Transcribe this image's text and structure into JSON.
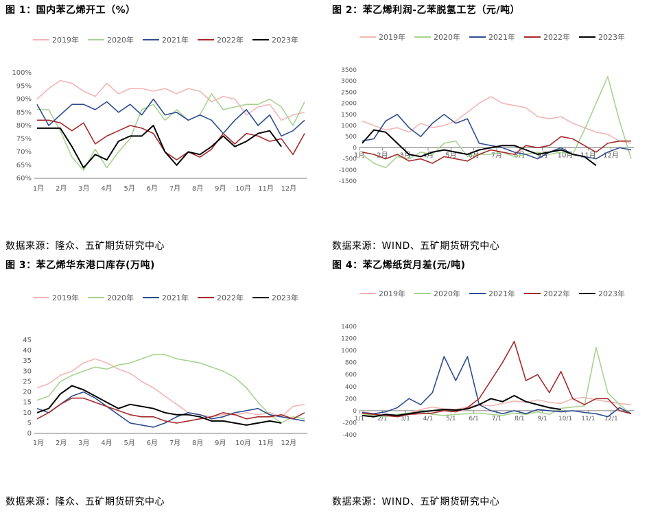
{
  "series_colors": {
    "2019": "#F2B5B5",
    "2020": "#A6D48E",
    "2021": "#2E4D8F",
    "2022": "#A52A2A",
    "2023": "#000000"
  },
  "charts": [
    {
      "title": "图 1：国内苯乙烯开工（%）",
      "source": "数据来源：隆众、五矿期货研究中心",
      "chart_data": {
        "type": "line",
        "legend": [
          "2019年",
          "2020年",
          "2021年",
          "2022年",
          "2023年"
        ],
        "x_ticks": [
          "1月",
          "2月",
          "3月",
          "4月",
          "5月",
          "6月",
          "7月",
          "8月",
          "9月",
          "10月",
          "11月",
          "12月"
        ],
        "y_ticks": [
          "60%",
          "65%",
          "70%",
          "75%",
          "80%",
          "85%",
          "90%",
          "95%",
          "100%"
        ],
        "ylim": [
          60,
          100
        ],
        "series": [
          {
            "name": "2019",
            "values": [
              90,
              94,
              97,
              96,
              93,
              91,
              96,
              92,
              94,
              94,
              93,
              94,
              92,
              94,
              93,
              89,
              91,
              90,
              84,
              87,
              88,
              82,
              84,
              85
            ]
          },
          {
            "name": "2020",
            "values": [
              86,
              86,
              78,
              68,
              63,
              71,
              64,
              70,
              75,
              86,
              88,
              82,
              86,
              82,
              84,
              92,
              86,
              87,
              88,
              88,
              90,
              87,
              80,
              89
            ]
          },
          {
            "name": "2021",
            "values": [
              88,
              80,
              84,
              88,
              88,
              86,
              89,
              85,
              88,
              84,
              90,
              84,
              85,
              82,
              84,
              82,
              77,
              82,
              86,
              80,
              84,
              76,
              78,
              82
            ]
          },
          {
            "name": "2022",
            "values": [
              82,
              82,
              81,
              78,
              81,
              73,
              76,
              78,
              80,
              79,
              77,
              70,
              67,
              70,
              68,
              71,
              77,
              73,
              77,
              76,
              74,
              75,
              69,
              77
            ]
          },
          {
            "name": "2023",
            "values": [
              79,
              79,
              79,
              72,
              64,
              69,
              67,
              74,
              76,
              76,
              80,
              70,
              65,
              70,
              69,
              72,
              76,
              72,
              74,
              77,
              78,
              72
            ]
          }
        ]
      }
    },
    {
      "title": "图 2：苯乙烯利润-乙苯脱氢工艺（元/吨）",
      "source": "数据来源：WIND、五矿期货研究中心",
      "chart_data": {
        "type": "line",
        "legend": [
          "2019年",
          "2020年",
          "2021年",
          "2022年",
          "2023年"
        ],
        "x_ticks": [
          "1月",
          "2月",
          "3月",
          "4月",
          "5月",
          "6月",
          "7月",
          "8月",
          "9月",
          "10月",
          "11月",
          "12月"
        ],
        "y_ticks": [
          "-1500",
          "-1000",
          "-500",
          "0",
          "500",
          "1000",
          "1500",
          "2000",
          "2500",
          "3000",
          "3500"
        ],
        "ylim": [
          -1500,
          3500
        ],
        "series": [
          {
            "name": "2019",
            "values": [
              1200,
              1000,
              800,
              900,
              700,
              1100,
              900,
              1000,
              1200,
              1600,
              2000,
              2300,
              2000,
              1900,
              1800,
              1400,
              1300,
              1400,
              1100,
              900,
              700,
              600,
              300,
              200
            ]
          },
          {
            "name": "2020",
            "values": [
              -300,
              -700,
              -900,
              -400,
              -500,
              -200,
              -300,
              200,
              300,
              -400,
              -300,
              -300,
              -200,
              -400,
              -300,
              -200,
              -300,
              -200,
              -300,
              800,
              2000,
              3200,
              1200,
              -500
            ]
          },
          {
            "name": "2021",
            "values": [
              300,
              400,
              1200,
              1500,
              900,
              500,
              1100,
              1500,
              1100,
              1300,
              200,
              100,
              0,
              -200,
              -300,
              -500,
              -200,
              0,
              -300,
              -400,
              -500,
              -200,
              0,
              -100
            ]
          },
          {
            "name": "2022",
            "values": [
              -200,
              -300,
              -500,
              -300,
              -600,
              -500,
              -700,
              -400,
              -500,
              -600,
              -300,
              -100,
              -200,
              -300,
              100,
              0,
              100,
              500,
              400,
              100,
              -200,
              200,
              300,
              300
            ]
          },
          {
            "name": "2023",
            "values": [
              200,
              800,
              700,
              200,
              -300,
              -400,
              -200,
              -100,
              -200,
              -300,
              -100,
              0,
              100,
              100,
              -100,
              -300,
              -200,
              -100,
              -300,
              -400,
              -800
            ]
          }
        ]
      }
    },
    {
      "title": "图 3：苯乙烯华东港口库存(万吨)",
      "source": "数据来源：隆众、五矿期货研究中心",
      "chart_data": {
        "type": "line",
        "legend": [
          "2019年",
          "2020年",
          "2021年",
          "2022年",
          "2023年"
        ],
        "x_ticks": [
          "1月",
          "2月",
          "3月",
          "4月",
          "5月",
          "6月",
          "7月",
          "8月",
          "9月",
          "10月",
          "11月",
          "12月"
        ],
        "y_ticks": [
          "0",
          "5",
          "10",
          "15",
          "20",
          "25",
          "30",
          "35",
          "40",
          "45"
        ],
        "ylim": [
          0,
          45
        ],
        "series": [
          {
            "name": "2019",
            "values": [
              22,
              24,
              28,
              30,
              34,
              36,
              34,
              31,
              29,
              25,
              22,
              18,
              14,
              10,
              9,
              8,
              9,
              9,
              10,
              9,
              10,
              8,
              13,
              14
            ]
          },
          {
            "name": "2020",
            "values": [
              16,
              18,
              25,
              28,
              30,
              32,
              31,
              33,
              34,
              36,
              38,
              38,
              36,
              35,
              34,
              32,
              30,
              27,
              22,
              15,
              9,
              5,
              8,
              7
            ]
          },
          {
            "name": "2021",
            "values": [
              12,
              10,
              14,
              18,
              20,
              17,
              13,
              9,
              5,
              4,
              3,
              5,
              8,
              10,
              9,
              7,
              8,
              10,
              11,
              12,
              9,
              8,
              7,
              6
            ]
          },
          {
            "name": "2022",
            "values": [
              7,
              10,
              14,
              17,
              17,
              15,
              13,
              11,
              9,
              8,
              8,
              6,
              5,
              6,
              7,
              8,
              10,
              9,
              7,
              8,
              8,
              9,
              7,
              10
            ]
          },
          {
            "name": "2023",
            "values": [
              10,
              12,
              19,
              23,
              21,
              18,
              15,
              12,
              14,
              13,
              12,
              10,
              9,
              9,
              8,
              6,
              6,
              5,
              4,
              5,
              6,
              5
            ]
          }
        ]
      }
    },
    {
      "title": "图 4：苯乙烯纸货月差(元/吨)",
      "source": "数据来源：WIND、五矿期货研究中心",
      "chart_data": {
        "type": "line",
        "legend": [
          "2019年",
          "2020年",
          "2021年",
          "2022年",
          "2023年"
        ],
        "x_ticks": [
          "1/1",
          "2/1",
          "3/1",
          "4/1",
          "5/1",
          "6/1",
          "7/1",
          "8/1",
          "9/1",
          "10/1",
          "11/1",
          "12/1"
        ],
        "y_ticks": [
          "-400",
          "-200",
          "0",
          "200",
          "400",
          "600",
          "800",
          "1000",
          "1200",
          "1400"
        ],
        "ylim": [
          -400,
          1400
        ],
        "series": [
          {
            "name": "2019",
            "values": [
              -20,
              -50,
              -80,
              -60,
              -40,
              20,
              60,
              30,
              20,
              60,
              100,
              80,
              120,
              160,
              140,
              180,
              140,
              120,
              200,
              220,
              180,
              150,
              120,
              100
            ]
          },
          {
            "name": "2020",
            "values": [
              -50,
              -80,
              -100,
              -60,
              -40,
              -20,
              -60,
              -80,
              -60,
              -50,
              -40,
              -60,
              -80,
              -40,
              -60,
              -20,
              -60,
              40,
              60,
              80,
              1050,
              300,
              100,
              -50
            ]
          },
          {
            "name": "2021",
            "values": [
              -30,
              -50,
              -20,
              50,
              200,
              100,
              300,
              900,
              500,
              900,
              100,
              0,
              -50,
              0,
              -50,
              20,
              0,
              -20,
              0,
              -30,
              -50,
              -100,
              50,
              -50
            ]
          },
          {
            "name": "2022",
            "values": [
              -40,
              -60,
              -80,
              -100,
              -60,
              -50,
              -40,
              0,
              -20,
              50,
              200,
              500,
              800,
              1150,
              500,
              600,
              300,
              650,
              200,
              100,
              200,
              200,
              0,
              -50
            ]
          },
          {
            "name": "2023",
            "values": [
              -80,
              -100,
              -60,
              -80,
              -50,
              -20,
              0,
              20,
              10,
              30,
              100,
              200,
              150,
              250,
              150,
              100,
              50,
              20
            ]
          }
        ]
      }
    }
  ]
}
